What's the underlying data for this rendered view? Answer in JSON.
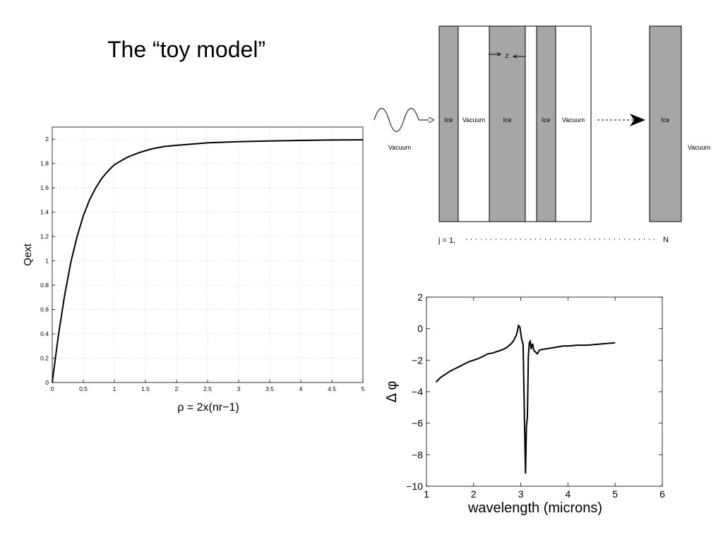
{
  "slide": {
    "title": "The “toy model”"
  },
  "colors": {
    "ice": "#a6a6a6",
    "vacuum": "#ffffff",
    "line": "#000000",
    "grid": "#d9d9d9"
  },
  "diagram": {
    "layers": [
      {
        "kind": "ice",
        "label": "Ice"
      },
      {
        "kind": "vacuum",
        "label": "Vacuum"
      },
      {
        "kind": "ice",
        "label": "Ice"
      },
      {
        "kind": "vacuum",
        "label": ""
      },
      {
        "kind": "ice",
        "label": "Ice"
      },
      {
        "kind": "vacuum",
        "label": "Vacuum"
      },
      {
        "kind": "ice",
        "label": "Ice"
      }
    ],
    "left_medium": "Vacuum",
    "right_medium": "Vacuum",
    "z_label": "z",
    "index_start": "j = 1,",
    "index_end": "N"
  },
  "chart_data": [
    {
      "type": "line",
      "title": "",
      "xlabel": "ρ = 2x(nr−1)",
      "ylabel": "Qext",
      "xlim": [
        0,
        5
      ],
      "ylim": [
        0,
        2.1
      ],
      "xticks": [
        "0",
        "0.5",
        "1",
        "1.5",
        "2",
        "2.5",
        "3",
        "3.5",
        "4",
        "4.5",
        "5"
      ],
      "yticks": [
        "0",
        "0.2",
        "0.4",
        "0.6",
        "0.8",
        "1",
        "1.2",
        "1.4",
        "1.6",
        "1.8",
        "2"
      ],
      "grid": true,
      "series": [
        {
          "x": [
            0,
            0.05,
            0.1,
            0.2,
            0.3,
            0.4,
            0.5,
            0.6,
            0.7,
            0.8,
            0.9,
            1.0,
            1.2,
            1.4,
            1.6,
            1.8,
            2.0,
            2.5,
            3.0,
            3.5,
            4.0,
            4.5,
            5.0
          ],
          "values": [
            0,
            0.2,
            0.39,
            0.72,
            0.99,
            1.2,
            1.37,
            1.5,
            1.6,
            1.68,
            1.74,
            1.79,
            1.85,
            1.89,
            1.92,
            1.94,
            1.95,
            1.97,
            1.98,
            1.985,
            1.99,
            1.993,
            1.995
          ]
        }
      ]
    },
    {
      "type": "line",
      "title": "",
      "xlabel": "wavelength (microns)",
      "ylabel": "Δ φ",
      "xlim": [
        1,
        6
      ],
      "ylim": [
        -10,
        2
      ],
      "xticks": [
        "1",
        "2",
        "3",
        "4",
        "5",
        "6"
      ],
      "yticks": [
        "−10",
        "−8",
        "−6",
        "−4",
        "−2",
        "0",
        "2"
      ],
      "grid": false,
      "series": [
        {
          "x": [
            1.2,
            1.3,
            1.4,
            1.5,
            1.6,
            1.7,
            1.8,
            1.9,
            2.0,
            2.1,
            2.2,
            2.3,
            2.4,
            2.5,
            2.6,
            2.7,
            2.8,
            2.85,
            2.9,
            2.93,
            2.95,
            2.98,
            3.0,
            3.02,
            3.05,
            3.08,
            3.1,
            3.12,
            3.14,
            3.16,
            3.18,
            3.2,
            3.22,
            3.25,
            3.28,
            3.3,
            3.35,
            3.4,
            3.5,
            3.6,
            3.7,
            3.8,
            3.9,
            4.0,
            4.2,
            4.4,
            4.6,
            4.8,
            5.0
          ],
          "values": [
            -3.4,
            -3.1,
            -2.9,
            -2.7,
            -2.55,
            -2.4,
            -2.25,
            -2.1,
            -2.0,
            -1.9,
            -1.75,
            -1.6,
            -1.55,
            -1.45,
            -1.35,
            -1.2,
            -0.95,
            -0.75,
            -0.45,
            -0.15,
            0.2,
            0.1,
            -0.3,
            -0.7,
            -1.0,
            -6.0,
            -9.2,
            -6.2,
            -5.6,
            -1.8,
            -0.9,
            -0.8,
            -1.3,
            -0.95,
            -1.4,
            -1.45,
            -1.6,
            -1.35,
            -1.3,
            -1.25,
            -1.2,
            -1.15,
            -1.1,
            -1.1,
            -1.05,
            -1.05,
            -1.0,
            -0.95,
            -0.9
          ]
        }
      ]
    }
  ]
}
